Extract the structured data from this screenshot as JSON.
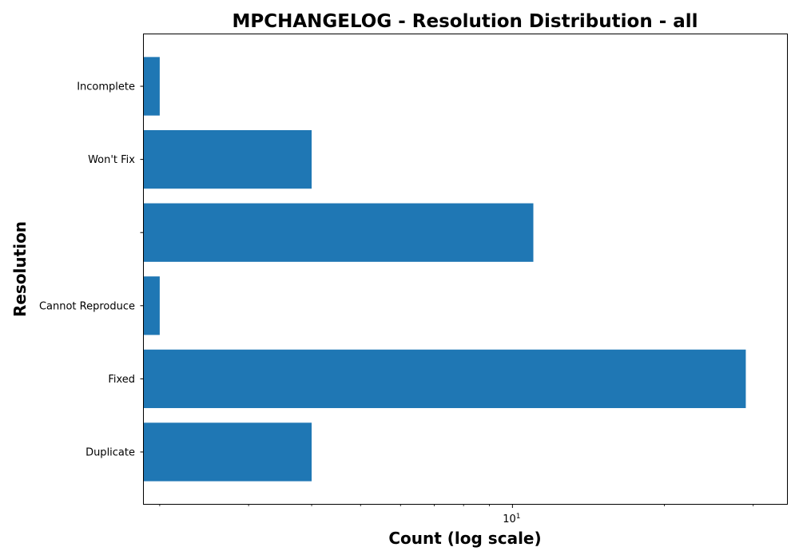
{
  "chart_data": {
    "type": "bar",
    "orientation": "horizontal",
    "title": "MPCHANGELOG - Resolution Distribution - all",
    "xlabel": "Count (log scale)",
    "ylabel": "Resolution",
    "xscale": "log",
    "xlim": [
      1.86,
      35
    ],
    "categories": [
      "Duplicate",
      "Fixed",
      "Cannot Reproduce",
      "",
      "Won't Fix",
      "Incomplete"
    ],
    "values": [
      4,
      29,
      2,
      11,
      4,
      2
    ],
    "x_ticks": [
      {
        "value": 10,
        "base": "10",
        "exponent": "1"
      }
    ],
    "x_minor_ticks": [
      2,
      3,
      4,
      5,
      6,
      7,
      8,
      9,
      20,
      30
    ],
    "grid": false,
    "legend": "none",
    "colors": {
      "bar": "#1f77b4",
      "axes": "#000000",
      "background": "#ffffff"
    }
  }
}
